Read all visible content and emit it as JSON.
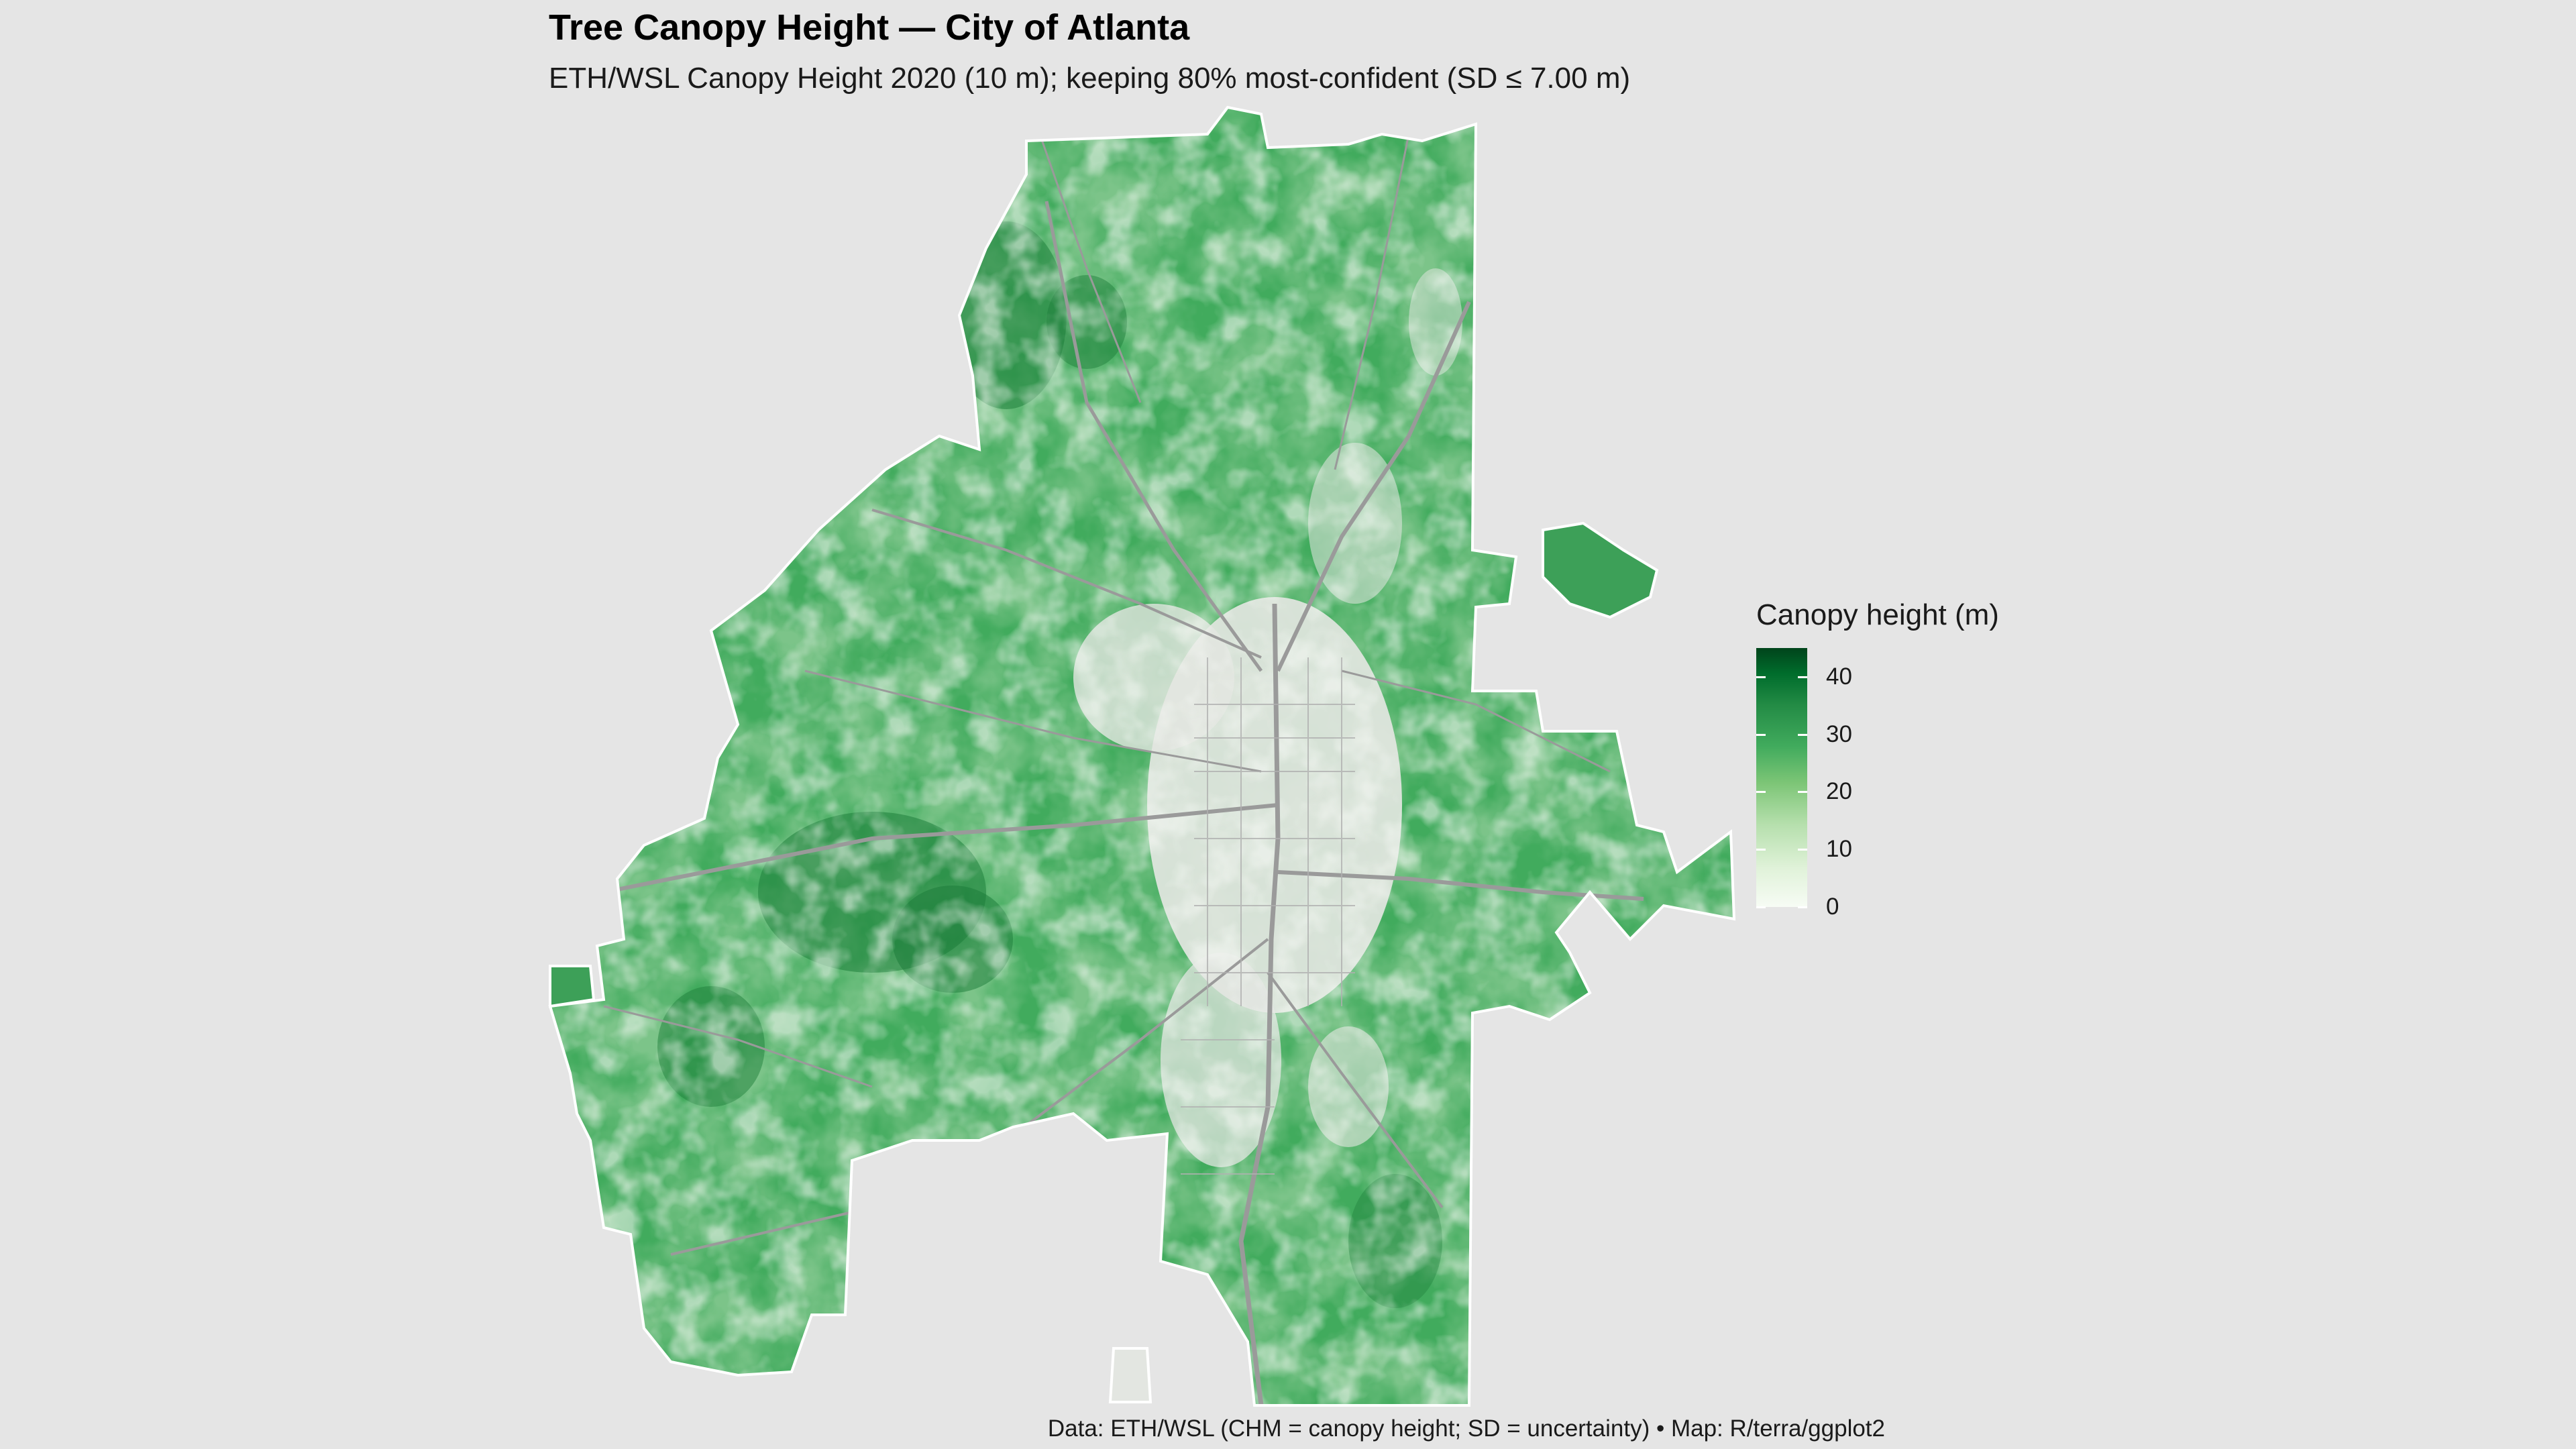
{
  "title": "Tree Canopy Height — City of Atlanta",
  "subtitle": "ETH/WSL Canopy Height 2020 (10 m); keeping 80% most-confident (SD ≤ 7.00 m)",
  "caption": "Data: ETH/WSL (CHM = canopy height; SD = uncertainty) • Map: R/terra/ggplot2",
  "legend": {
    "title": "Canopy height (m)",
    "min": 0,
    "max": 45,
    "ticks": [
      {
        "value": 0,
        "label": "0"
      },
      {
        "value": 10,
        "label": "10"
      },
      {
        "value": 20,
        "label": "20"
      },
      {
        "value": 30,
        "label": "30"
      },
      {
        "value": 40,
        "label": "40"
      }
    ]
  },
  "colors": {
    "background": "#e5e5e5",
    "canopy_low": "#f7fcf5",
    "canopy_mid": "#41ab5d",
    "canopy_high": "#00441b",
    "roads": "#9a9a9a",
    "boundary": "#ffffff"
  }
}
